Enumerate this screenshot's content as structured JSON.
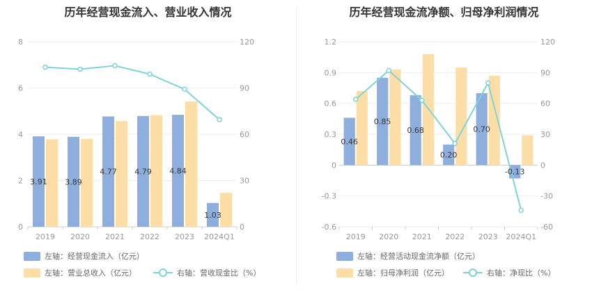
{
  "left_title": "历年经营现金流入、营业收入情况",
  "right_title": "历年经营现金流净额、归母净利润情况",
  "colors": {
    "bar_primary": "#8eaedd",
    "bar_secondary": "#fedea7",
    "line": "#7fd3d8"
  },
  "left_legend": {
    "bar_primary": "左轴：经营现金流入（亿元）",
    "bar_secondary": "左轴：营业总收入（亿元）",
    "line": "右轴：营收现金比（%）"
  },
  "right_legend": {
    "bar_primary": "左轴：经营活动现金流净额（亿元）",
    "bar_secondary": "左轴：归母净利润（亿元）",
    "line": "右轴：净现比（%）"
  },
  "chart_data": [
    {
      "type": "bar",
      "title": "历年经营现金流入、营业收入情况",
      "categories": [
        "2019",
        "2020",
        "2021",
        "2022",
        "2023",
        "2024Q1"
      ],
      "series": [
        {
          "name": "左轴：经营现金流入（亿元）",
          "axis": "left",
          "type": "bar",
          "values": [
            3.91,
            3.89,
            4.77,
            4.79,
            4.84,
            1.03
          ],
          "labels": [
            "3.91",
            "3.89",
            "4.77",
            "4.79",
            "4.84",
            "1.03"
          ]
        },
        {
          "name": "左轴：营业总收入（亿元）",
          "axis": "left",
          "type": "bar",
          "values": [
            3.78,
            3.8,
            4.57,
            4.83,
            5.42,
            1.47
          ]
        },
        {
          "name": "右轴：营收现金比（%）",
          "axis": "right",
          "type": "line",
          "values": [
            103.5,
            102.2,
            104.5,
            99.0,
            89.2,
            69.5
          ]
        }
      ],
      "left_axis": {
        "ylim": [
          0,
          8
        ],
        "ticks": [
          "0",
          "2",
          "4",
          "6",
          "8"
        ]
      },
      "right_axis": {
        "ylim": [
          0,
          120
        ],
        "ticks": [
          "0",
          "30",
          "60",
          "90",
          "120"
        ]
      },
      "grid": true,
      "legend_position": "bottom"
    },
    {
      "type": "bar",
      "title": "历年经营现金流净额、归母净利润情况",
      "categories": [
        "2019",
        "2020",
        "2021",
        "2022",
        "2023",
        "2024Q1"
      ],
      "series": [
        {
          "name": "左轴：经营活动现金流净额（亿元）",
          "axis": "left",
          "type": "bar",
          "values": [
            0.46,
            0.85,
            0.68,
            0.2,
            0.7,
            -0.13
          ],
          "labels": [
            "0.46",
            "0.85",
            "0.68",
            "0.20",
            "0.70",
            "-0.13"
          ]
        },
        {
          "name": "左轴：归母净利润（亿元）",
          "axis": "left",
          "type": "bar",
          "values": [
            0.72,
            0.93,
            1.08,
            0.95,
            0.87,
            0.29
          ]
        },
        {
          "name": "右轴：净现比（%）",
          "axis": "right",
          "type": "line",
          "values": [
            64,
            92,
            63,
            21,
            80,
            -44
          ]
        }
      ],
      "left_axis": {
        "ylim": [
          -0.6,
          1.2
        ],
        "ticks": [
          "-0.6",
          "-0.3",
          "0",
          "0.3",
          "0.6",
          "0.9",
          "1.2"
        ]
      },
      "right_axis": {
        "ylim": [
          -60,
          120
        ],
        "ticks": [
          "-60",
          "-30",
          "0",
          "30",
          "60",
          "90",
          "120"
        ]
      },
      "grid": true,
      "legend_position": "bottom"
    }
  ]
}
